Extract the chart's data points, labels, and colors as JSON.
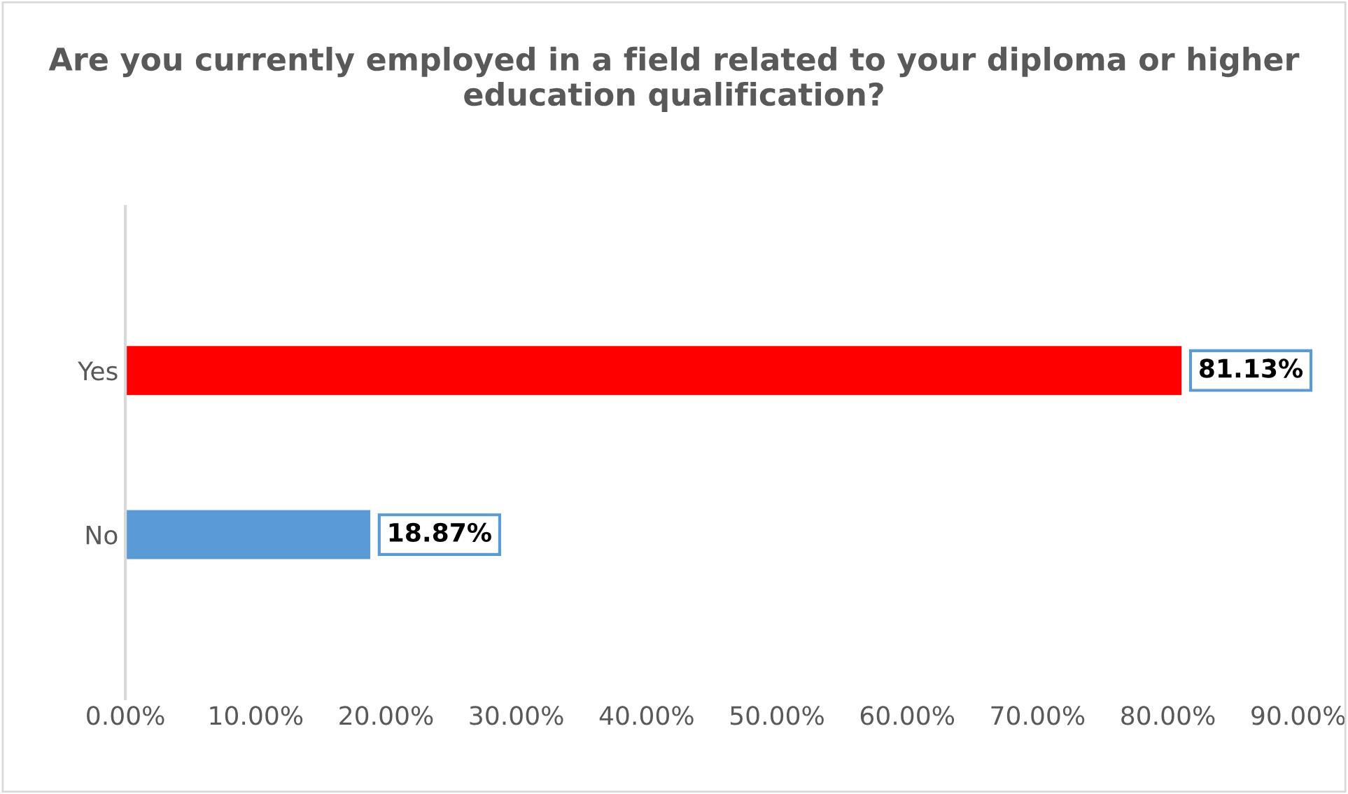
{
  "chart_data": {
    "type": "bar",
    "orientation": "horizontal",
    "title": "Are you currently employed in a field related to your diploma or higher education qualification?",
    "categories": [
      "Yes",
      "No"
    ],
    "values": [
      81.13,
      18.87
    ],
    "colors": [
      "#ff0000",
      "#5b9bd5"
    ],
    "value_labels": [
      "81.13%",
      "18.87%"
    ],
    "xlim": [
      0,
      90
    ],
    "xticks": [
      {
        "value": 0,
        "label": "0.00%"
      },
      {
        "value": 10,
        "label": "10.00%"
      },
      {
        "value": 20,
        "label": "20.00%"
      },
      {
        "value": 30,
        "label": "30.00%"
      },
      {
        "value": 40,
        "label": "40.00%"
      },
      {
        "value": 50,
        "label": "50.00%"
      },
      {
        "value": 60,
        "label": "60.00%"
      },
      {
        "value": 70,
        "label": "70.00%"
      },
      {
        "value": 80,
        "label": "80.00%"
      },
      {
        "value": 90,
        "label": "90.00%"
      }
    ],
    "grid": false,
    "legend": false
  }
}
